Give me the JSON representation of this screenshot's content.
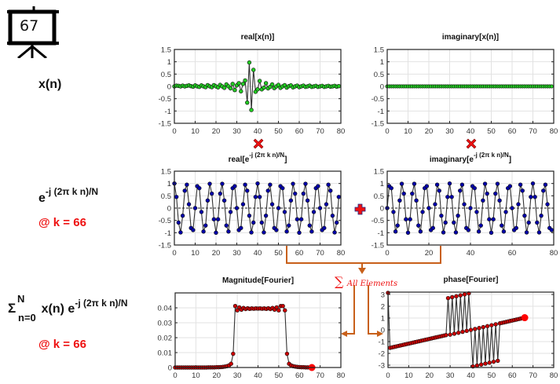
{
  "badge": {
    "number": "67",
    "icon": "presentation-board-icon"
  },
  "row_labels": {
    "signal": "x(n)",
    "kernel_base": "e",
    "kernel_exp": "-j (2π k n)/N",
    "kernel_at": "@ k = 66",
    "dft_sigma": "Σ",
    "dft_sup": "N",
    "dft_sub": "n=0",
    "dft_mid": " x(n) e",
    "dft_exp": "-j (2π k n)/N",
    "dft_at": "@ k = 66"
  },
  "operators": {
    "multiply": "✖",
    "plus": "✚"
  },
  "sum_annotation": {
    "symbol": "∑",
    "text": "All Elements"
  },
  "colors": {
    "green_marker": "#22cc22",
    "blue_marker": "#0000aa",
    "red_marker": "#cc0000",
    "highlight": "#ff0000",
    "arrow": "#c8601a",
    "label_red": "#ee1111"
  },
  "chart_data": [
    {
      "id": "real_x",
      "type": "line",
      "title": "real[x(n)]",
      "xlim": [
        0,
        80
      ],
      "ylim": [
        -1.5,
        1.5
      ],
      "xticks": [
        0,
        10,
        20,
        30,
        40,
        50,
        60,
        70,
        80
      ],
      "yticks": [
        1.5,
        1,
        0.5,
        0,
        -0.5,
        -1,
        -1.5
      ],
      "ytick_labels": [
        "1.5",
        "1",
        "0.5",
        "0",
        "-0.5",
        "-1",
        "-1.5"
      ],
      "grid": true,
      "marker_color": "#22cc22",
      "x": [
        0,
        1,
        2,
        3,
        4,
        5,
        6,
        7,
        8,
        9,
        10,
        11,
        12,
        13,
        14,
        15,
        16,
        17,
        18,
        19,
        20,
        21,
        22,
        23,
        24,
        25,
        26,
        27,
        28,
        29,
        30,
        31,
        32,
        33,
        34,
        35,
        36,
        37,
        38,
        39,
        40,
        41,
        42,
        43,
        44,
        45,
        46,
        47,
        48,
        49,
        50,
        51,
        52,
        53,
        54,
        55,
        56,
        57,
        58,
        59,
        60,
        61,
        62,
        63,
        64,
        65,
        66,
        67,
        68,
        69,
        70,
        71,
        72,
        73,
        74,
        75,
        76,
        77,
        78,
        79
      ],
      "y": [
        0.0,
        0.03,
        0.02,
        0.0,
        0.03,
        0.0,
        0.02,
        0.04,
        0.01,
        -0.01,
        0.04,
        0.0,
        -0.02,
        0.04,
        0.0,
        -0.03,
        0.05,
        0.0,
        -0.03,
        0.05,
        0.0,
        -0.04,
        0.06,
        0.0,
        -0.06,
        0.08,
        0.0,
        -0.08,
        0.1,
        -0.15,
        0.04,
        0.13,
        -0.2,
        0.1,
        0.24,
        -0.66,
        0.97,
        -0.96,
        0.67,
        -0.22,
        -0.12,
        0.22,
        -0.12,
        -0.05,
        0.13,
        -0.08,
        -0.02,
        0.08,
        -0.07,
        0.0,
        0.06,
        -0.06,
        0.0,
        0.05,
        -0.05,
        0.01,
        0.04,
        -0.04,
        0.0,
        0.03,
        -0.03,
        0.0,
        0.03,
        -0.02,
        0.0,
        0.03,
        -0.02,
        0.0,
        0.02,
        -0.02,
        0.0,
        0.02,
        -0.02,
        0.0,
        0.02,
        -0.01,
        0.0,
        0.02,
        -0.01,
        0.01
      ],
      "zero_line": false
    },
    {
      "id": "imag_x",
      "type": "line",
      "title": "imaginary[x(n)]",
      "xlim": [
        0,
        80
      ],
      "ylim": [
        -1.5,
        1.5
      ],
      "xticks": [
        0,
        10,
        20,
        30,
        40,
        50,
        60,
        70,
        80
      ],
      "yticks": [
        1.5,
        1,
        0.5,
        0,
        -0.5,
        -1,
        -1.5
      ],
      "ytick_labels": [
        "1.5",
        "1",
        "0.5",
        "0",
        "-0.5",
        "-1",
        "-1.5"
      ],
      "grid": true,
      "marker_color": "#22cc22",
      "x_range": [
        0,
        79
      ],
      "y_constant": 0,
      "zero_line": false
    },
    {
      "id": "real_kernel",
      "type": "line",
      "title_main": "real[e",
      "title_sup": "-j (2π k n)/N",
      "title_end": "]",
      "xlim": [
        0,
        80
      ],
      "ylim": [
        -1.5,
        1.5
      ],
      "xticks": [
        0,
        10,
        20,
        30,
        40,
        50,
        60,
        70,
        80
      ],
      "yticks": [
        1.5,
        1,
        0.5,
        0,
        -0.5,
        -1,
        -1.5
      ],
      "ytick_labels": [
        "1.5",
        "1",
        "0.5",
        "0",
        "-0.5",
        "-1",
        "-1.5"
      ],
      "grid": true,
      "marker_color": "#0000aa",
      "k": 66,
      "N": 80,
      "part": "cos",
      "n_range": [
        0,
        79
      ],
      "zero_line": true
    },
    {
      "id": "imag_kernel",
      "type": "line",
      "title_main": "imaginary[e",
      "title_sup": "-j (2π k n)/N",
      "title_end": "]",
      "xlim": [
        0,
        80
      ],
      "ylim": [
        -1.5,
        1.5
      ],
      "xticks": [
        0,
        20,
        40,
        60,
        80
      ],
      "yticks": [
        1.5,
        1,
        0.5,
        0,
        -0.5,
        -1,
        -1.5
      ],
      "ytick_labels": [
        "1.5",
        "1",
        "0.5",
        "0",
        "-0.5",
        "-1",
        "-1.5"
      ],
      "grid": true,
      "marker_color": "#0000aa",
      "k": 66,
      "N": 80,
      "part": "-sin",
      "n_range": [
        0,
        79
      ],
      "zero_line": true
    },
    {
      "id": "magnitude",
      "type": "line",
      "title": "Magnitude[Fourier]",
      "xlim": [
        0,
        80
      ],
      "ylim": [
        0,
        0.05
      ],
      "xticks": [
        0,
        10,
        20,
        30,
        40,
        50,
        60,
        70,
        80
      ],
      "yticks": [
        0.04,
        0.03,
        0.02,
        0.01,
        0
      ],
      "ytick_labels": [
        "0.04",
        "0.03",
        "0.02",
        "0.01",
        "0"
      ],
      "grid": true,
      "marker_color": "#cc0000",
      "x": [
        0,
        1,
        2,
        3,
        4,
        5,
        6,
        7,
        8,
        9,
        10,
        11,
        12,
        13,
        14,
        15,
        16,
        17,
        18,
        19,
        20,
        21,
        22,
        23,
        24,
        25,
        26,
        27,
        28,
        29,
        30,
        31,
        32,
        33,
        34,
        35,
        36,
        37,
        38,
        39,
        40,
        41,
        42,
        43,
        44,
        45,
        46,
        47,
        48,
        49,
        50,
        51,
        52,
        53,
        54,
        55,
        56,
        57,
        58,
        59,
        60,
        61,
        62,
        63,
        64,
        65,
        66
      ],
      "y": [
        0.0,
        0.0,
        0.0,
        0.0,
        0.0,
        0.0,
        0.0,
        0.0,
        0.0,
        0.0,
        0.0,
        0.0,
        0.0,
        0.0,
        0.0,
        0.0,
        0.0001,
        0.0001,
        0.0001,
        0.0001,
        0.0002,
        0.0002,
        0.0003,
        0.0004,
        0.0006,
        0.0009,
        0.0014,
        0.0025,
        0.0092,
        0.0412,
        0.0383,
        0.0403,
        0.0388,
        0.0399,
        0.0392,
        0.0397,
        0.0393,
        0.0396,
        0.0394,
        0.0396,
        0.0395,
        0.0396,
        0.0394,
        0.0396,
        0.0393,
        0.0397,
        0.0392,
        0.0399,
        0.0388,
        0.0403,
        0.0383,
        0.0412,
        0.0412,
        0.0383,
        0.0092,
        0.0025,
        0.0014,
        0.0009,
        0.0006,
        0.0004,
        0.0003,
        0.0002,
        0.0002,
        0.0001,
        0.0001,
        0.0001,
        0.0
      ],
      "highlight": {
        "x": 66,
        "y": 0.0
      },
      "zero_line": true
    },
    {
      "id": "phase",
      "type": "line",
      "title": "phase[Fourier]",
      "xlim": [
        0,
        80
      ],
      "ylim": [
        -3.2,
        3.2
      ],
      "xticks": [
        0,
        10,
        20,
        30,
        40,
        50,
        60,
        70,
        80
      ],
      "yticks": [
        3,
        2,
        1,
        0,
        -1,
        -2,
        -3
      ],
      "ytick_labels": [
        "3",
        "2",
        "1",
        "0",
        "-1",
        "-2",
        "-3"
      ],
      "grid": true,
      "marker_color": "#cc0000",
      "x": [
        0,
        1,
        2,
        3,
        4,
        5,
        6,
        7,
        8,
        9,
        10,
        11,
        12,
        13,
        14,
        15,
        16,
        17,
        18,
        19,
        20,
        21,
        22,
        23,
        24,
        25,
        26,
        27,
        28,
        29,
        30,
        31,
        32,
        33,
        34,
        35,
        36,
        37,
        38,
        39,
        40,
        41,
        42,
        43,
        44,
        45,
        46,
        47,
        48,
        49,
        50,
        51,
        52,
        53,
        54,
        55,
        56,
        57,
        58,
        59,
        60,
        61,
        62,
        63,
        64,
        65,
        66
      ],
      "y": [
        3.14,
        -1.53,
        -1.49,
        -1.45,
        -1.41,
        -1.37,
        -1.33,
        -1.29,
        -1.25,
        -1.21,
        -1.17,
        -1.13,
        -1.09,
        -1.05,
        -1.01,
        -0.97,
        -0.93,
        -0.89,
        -0.85,
        -0.81,
        -0.77,
        -0.73,
        -0.69,
        -0.65,
        -0.61,
        -0.57,
        -0.53,
        -0.49,
        -0.45,
        2.69,
        -0.41,
        2.77,
        -0.33,
        2.85,
        -0.25,
        2.93,
        -0.17,
        3.01,
        -0.09,
        3.09,
        -0.01,
        -3.11,
        0.07,
        -3.03,
        0.15,
        -2.95,
        0.23,
        -2.87,
        0.31,
        -2.79,
        0.39,
        -2.71,
        0.47,
        -2.63,
        0.55,
        0.59,
        0.63,
        0.67,
        0.71,
        0.75,
        0.79,
        0.83,
        0.87,
        0.91,
        0.95,
        0.99,
        1.03
      ],
      "highlight": {
        "x": 66,
        "y": 1.03
      },
      "zero_line": false
    }
  ]
}
